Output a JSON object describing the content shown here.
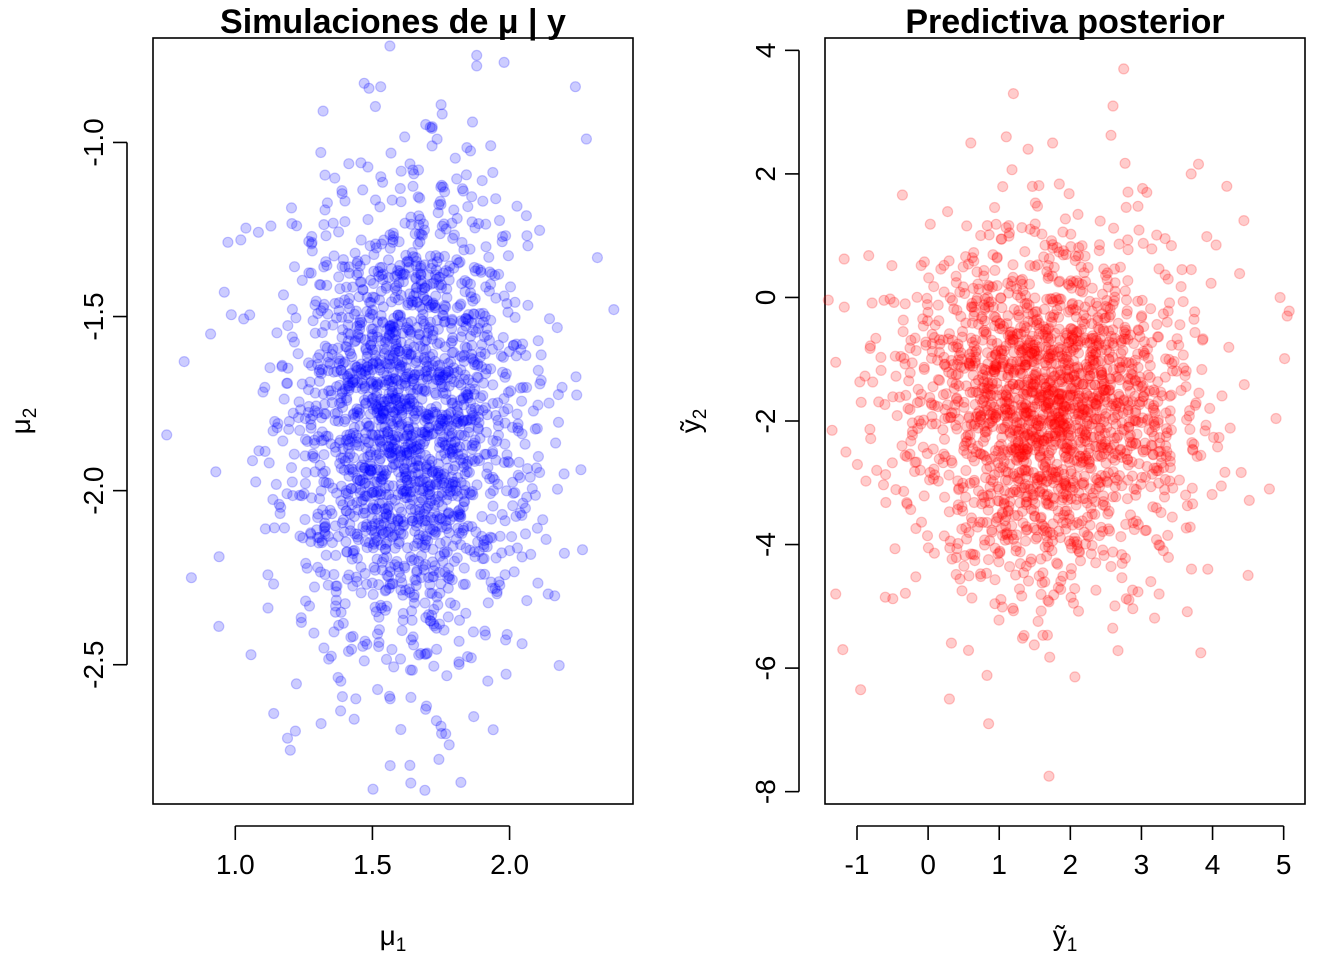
{
  "chart_data": [
    {
      "type": "scatter",
      "title": "Simulaciones de μ | y",
      "xlabel": {
        "base": "μ",
        "sub": "1"
      },
      "ylabel": {
        "base": "μ",
        "sub": "2"
      },
      "x_ticks": [
        "1.0",
        "1.5",
        "2.0"
      ],
      "y_ticks": [
        "-1.0",
        "-1.5",
        "-2.0",
        "-2.5"
      ],
      "xlim": [
        0.7,
        2.45
      ],
      "ylim": [
        -2.9,
        -0.7
      ],
      "color": "#0000ff",
      "alpha": 0.2,
      "n_points": 2000,
      "distribution": {
        "x_mean": 1.63,
        "x_sd": 0.22,
        "y_mean": -1.8,
        "y_sd": 0.33,
        "corr": 0.0
      },
      "series": [
        {
          "points": [
            [
              0.75,
              -1.84
            ],
            [
              0.84,
              -2.25
            ],
            [
              0.91,
              -1.55
            ],
            [
              0.94,
              -2.39
            ],
            [
              0.96,
              -1.43
            ],
            [
              1.02,
              -1.28
            ],
            [
              1.14,
              -2.64
            ],
            [
              2.38,
              -1.48
            ],
            [
              2.28,
              -0.99
            ],
            [
              2.24,
              -0.84
            ],
            [
              1.88,
              -0.78
            ],
            [
              1.98,
              -0.77
            ],
            [
              1.47,
              -0.83
            ],
            [
              1.53,
              -0.84
            ],
            [
              1.64,
              -2.84
            ],
            [
              1.78,
              -2.73
            ],
            [
              1.88,
              -0.75
            ],
            [
              1.32,
              -0.91
            ],
            [
              2.26,
              -1.94
            ],
            [
              2.2,
              -2.18
            ]
          ]
        }
      ]
    },
    {
      "type": "scatter",
      "title": "Predictiva posterior",
      "xlabel": {
        "base": "ỹ",
        "sub": "1"
      },
      "ylabel": {
        "base": "ỹ",
        "sub": "2"
      },
      "x_ticks": [
        "-1",
        "0",
        "1",
        "2",
        "3",
        "4",
        "5"
      ],
      "y_ticks": [
        "4",
        "2",
        "0",
        "-2",
        "-4",
        "-6",
        "-8"
      ],
      "xlim": [
        -1.45,
        5.3
      ],
      "ylim": [
        -8.2,
        4.2
      ],
      "color": "#ff0000",
      "alpha": 0.2,
      "n_points": 2000,
      "distribution": {
        "x_mean": 1.65,
        "x_sd": 1.0,
        "y_mean": -1.8,
        "y_sd": 1.4,
        "corr": 0.0
      },
      "series": [
        {
          "points": [
            [
              -1.35,
              -2.15
            ],
            [
              -1.3,
              -4.8
            ],
            [
              -1.2,
              -5.7
            ],
            [
              -0.95,
              -6.35
            ],
            [
              0.3,
              -6.5
            ],
            [
              0.85,
              -6.9
            ],
            [
              1.7,
              -7.75
            ],
            [
              1.2,
              3.3
            ],
            [
              2.75,
              3.7
            ],
            [
              2.6,
              3.1
            ],
            [
              4.95,
              0.0
            ],
            [
              5.05,
              -0.3
            ],
            [
              4.8,
              -3.1
            ],
            [
              4.5,
              -4.5
            ],
            [
              1.1,
              2.6
            ],
            [
              4.2,
              1.8
            ],
            [
              3.7,
              2.0
            ],
            [
              -1.3,
              -1.05
            ],
            [
              0.6,
              2.5
            ],
            [
              1.75,
              2.5
            ]
          ]
        }
      ]
    }
  ]
}
